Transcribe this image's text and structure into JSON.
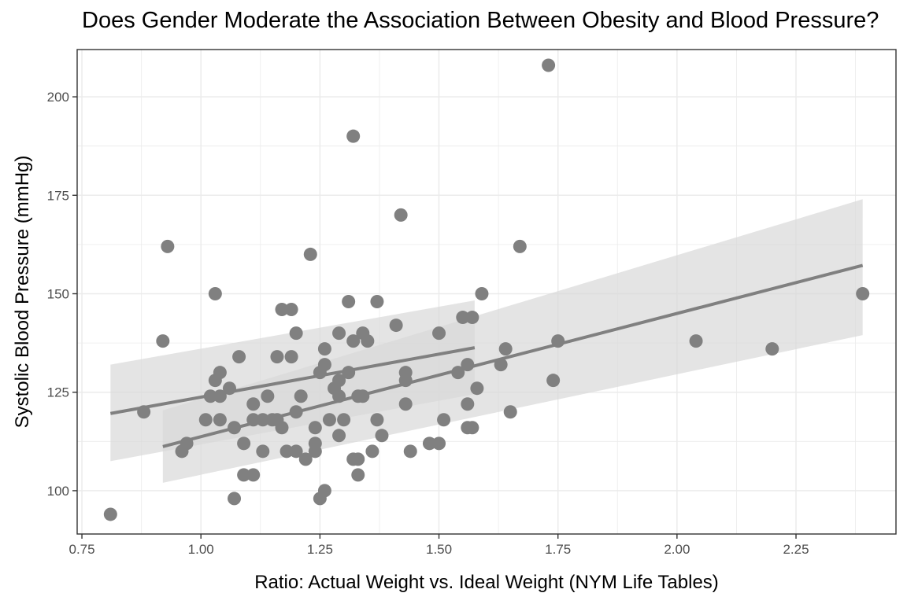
{
  "chart_data": {
    "type": "scatter",
    "title": "Does Gender Moderate the Association Between Obesity and Blood Pressure?",
    "xlabel": "Ratio: Actual Weight vs. Ideal Weight (NYM Life Tables)",
    "ylabel": "Systolic Blood Pressure (mmHg)",
    "xlim": [
      0.74,
      2.46
    ],
    "ylim": [
      89,
      212
    ],
    "x_ticks": [
      0.75,
      1.0,
      1.25,
      1.5,
      1.75,
      2.0,
      2.25
    ],
    "x_tick_labels": [
      "0.75",
      "1.00",
      "1.25",
      "1.50",
      "1.75",
      "2.00",
      "2.25"
    ],
    "y_ticks": [
      100,
      125,
      150,
      175,
      200
    ],
    "y_tick_labels": [
      "100",
      "125",
      "150",
      "175",
      "200"
    ],
    "grid": true,
    "legend": "none",
    "colors": {
      "point": "#808080",
      "line": "#808080",
      "band": "#d9d9d9",
      "grid": "#ebebeb",
      "panel_border": "#333333"
    },
    "points": [
      {
        "x": 0.81,
        "y": 94
      },
      {
        "x": 0.88,
        "y": 120
      },
      {
        "x": 0.92,
        "y": 138
      },
      {
        "x": 0.93,
        "y": 162
      },
      {
        "x": 0.96,
        "y": 110
      },
      {
        "x": 0.97,
        "y": 112
      },
      {
        "x": 1.01,
        "y": 118
      },
      {
        "x": 1.02,
        "y": 124
      },
      {
        "x": 1.03,
        "y": 128
      },
      {
        "x": 1.03,
        "y": 150
      },
      {
        "x": 1.04,
        "y": 130
      },
      {
        "x": 1.04,
        "y": 124
      },
      {
        "x": 1.04,
        "y": 118
      },
      {
        "x": 1.06,
        "y": 126
      },
      {
        "x": 1.07,
        "y": 116
      },
      {
        "x": 1.07,
        "y": 98
      },
      {
        "x": 1.08,
        "y": 134
      },
      {
        "x": 1.09,
        "y": 112
      },
      {
        "x": 1.09,
        "y": 104
      },
      {
        "x": 1.11,
        "y": 104
      },
      {
        "x": 1.11,
        "y": 122
      },
      {
        "x": 1.11,
        "y": 118
      },
      {
        "x": 1.13,
        "y": 110
      },
      {
        "x": 1.13,
        "y": 118
      },
      {
        "x": 1.14,
        "y": 124
      },
      {
        "x": 1.15,
        "y": 118
      },
      {
        "x": 1.16,
        "y": 118
      },
      {
        "x": 1.16,
        "y": 134
      },
      {
        "x": 1.17,
        "y": 116
      },
      {
        "x": 1.17,
        "y": 146
      },
      {
        "x": 1.18,
        "y": 110
      },
      {
        "x": 1.19,
        "y": 146
      },
      {
        "x": 1.19,
        "y": 134
      },
      {
        "x": 1.2,
        "y": 110
      },
      {
        "x": 1.2,
        "y": 120
      },
      {
        "x": 1.2,
        "y": 140
      },
      {
        "x": 1.21,
        "y": 124
      },
      {
        "x": 1.22,
        "y": 108
      },
      {
        "x": 1.23,
        "y": 160
      },
      {
        "x": 1.24,
        "y": 110
      },
      {
        "x": 1.24,
        "y": 112
      },
      {
        "x": 1.24,
        "y": 116
      },
      {
        "x": 1.25,
        "y": 98
      },
      {
        "x": 1.25,
        "y": 130
      },
      {
        "x": 1.26,
        "y": 100
      },
      {
        "x": 1.26,
        "y": 132
      },
      {
        "x": 1.26,
        "y": 136
      },
      {
        "x": 1.27,
        "y": 118
      },
      {
        "x": 1.28,
        "y": 126
      },
      {
        "x": 1.29,
        "y": 124
      },
      {
        "x": 1.29,
        "y": 128
      },
      {
        "x": 1.29,
        "y": 114
      },
      {
        "x": 1.29,
        "y": 140
      },
      {
        "x": 1.3,
        "y": 118
      },
      {
        "x": 1.31,
        "y": 130
      },
      {
        "x": 1.31,
        "y": 148
      },
      {
        "x": 1.32,
        "y": 108
      },
      {
        "x": 1.32,
        "y": 138
      },
      {
        "x": 1.32,
        "y": 190
      },
      {
        "x": 1.33,
        "y": 104
      },
      {
        "x": 1.33,
        "y": 108
      },
      {
        "x": 1.33,
        "y": 124
      },
      {
        "x": 1.34,
        "y": 124
      },
      {
        "x": 1.34,
        "y": 140
      },
      {
        "x": 1.35,
        "y": 138
      },
      {
        "x": 1.36,
        "y": 110
      },
      {
        "x": 1.37,
        "y": 118
      },
      {
        "x": 1.37,
        "y": 148
      },
      {
        "x": 1.38,
        "y": 114
      },
      {
        "x": 1.41,
        "y": 142
      },
      {
        "x": 1.42,
        "y": 170
      },
      {
        "x": 1.43,
        "y": 122
      },
      {
        "x": 1.43,
        "y": 128
      },
      {
        "x": 1.43,
        "y": 130
      },
      {
        "x": 1.44,
        "y": 110
      },
      {
        "x": 1.48,
        "y": 112
      },
      {
        "x": 1.5,
        "y": 112
      },
      {
        "x": 1.5,
        "y": 140
      },
      {
        "x": 1.51,
        "y": 118
      },
      {
        "x": 1.54,
        "y": 130
      },
      {
        "x": 1.55,
        "y": 144
      },
      {
        "x": 1.56,
        "y": 116
      },
      {
        "x": 1.56,
        "y": 122
      },
      {
        "x": 1.56,
        "y": 132
      },
      {
        "x": 1.57,
        "y": 116
      },
      {
        "x": 1.57,
        "y": 144
      },
      {
        "x": 1.58,
        "y": 126
      },
      {
        "x": 1.59,
        "y": 150
      },
      {
        "x": 1.63,
        "y": 132
      },
      {
        "x": 1.64,
        "y": 136
      },
      {
        "x": 1.65,
        "y": 120
      },
      {
        "x": 1.67,
        "y": 162
      },
      {
        "x": 1.73,
        "y": 208
      },
      {
        "x": 1.74,
        "y": 128
      },
      {
        "x": 1.75,
        "y": 138
      },
      {
        "x": 2.04,
        "y": 138
      },
      {
        "x": 2.2,
        "y": 136
      },
      {
        "x": 2.39,
        "y": 150
      }
    ],
    "fit_lines": [
      {
        "x": [
          0.81,
          1.575
        ],
        "y": [
          119.6,
          136.3
        ],
        "band_lower": [
          107.5,
          124.5
        ],
        "band_upper": [
          132.0,
          148.3
        ]
      },
      {
        "x": [
          0.92,
          2.39
        ],
        "y": [
          111.2,
          157.2
        ],
        "band_lower": [
          102.0,
          139.5
        ],
        "band_upper": [
          120.4,
          174.0
        ]
      }
    ]
  }
}
